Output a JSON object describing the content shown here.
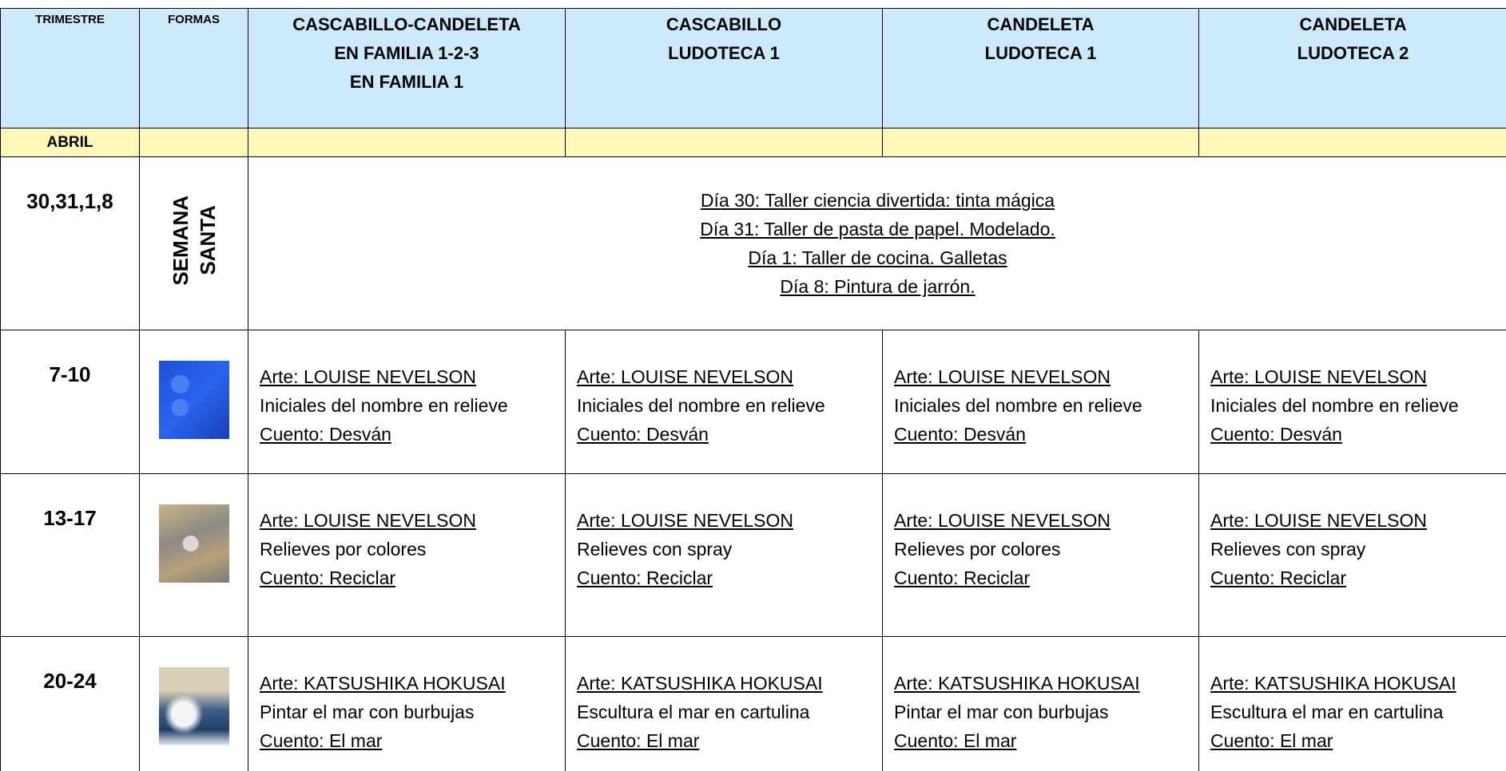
{
  "header": {
    "columns": [
      [
        "TRIMESTRE"
      ],
      [
        "FORMAS"
      ],
      [
        "CASCABILLO-CANDELETA",
        "EN FAMILIA 1-2-3",
        "EN FAMILIA 1"
      ],
      [
        "CASCABILLO",
        "LUDOTECA 1"
      ],
      [
        "CANDELETA",
        "LUDOTECA 1"
      ],
      [
        "CANDELETA",
        "LUDOTECA 2"
      ]
    ]
  },
  "month": "ABRIL",
  "holiday": {
    "dates": "30,31,1,8",
    "forma": [
      "SEMANA",
      "SANTA"
    ],
    "lines": [
      "Día 30: Taller ciencia divertida: tinta mágica",
      "Día 31: Taller de pasta de papel. Modelado.",
      "Día 1: Taller de cocina. Galletas",
      "Día 8: Pintura de jarrón."
    ]
  },
  "weeks": [
    {
      "dates": "7-10",
      "cells": [
        [
          "Arte: LOUISE NEVELSON",
          "Iniciales del nombre en relieve",
          "Cuento: Desván"
        ],
        [
          "Arte: LOUISE NEVELSON",
          "Iniciales del nombre en relieve",
          "Cuento: Desván"
        ],
        [
          "Arte: LOUISE NEVELSON",
          "Iniciales del nombre en relieve",
          "Cuento: Desván"
        ],
        [
          "Arte: LOUISE NEVELSON",
          "Iniciales del nombre en relieve",
          "Cuento: Desván"
        ]
      ]
    },
    {
      "dates": "13-17",
      "cells": [
        [
          "Arte: LOUISE NEVELSON",
          "Relieves por colores",
          "Cuento: Reciclar"
        ],
        [
          "Arte: LOUISE NEVELSON",
          "Relieves con spray",
          "Cuento: Reciclar"
        ],
        [
          "Arte: LOUISE NEVELSON",
          "Relieves por colores",
          "Cuento: Reciclar"
        ],
        [
          "Arte: LOUISE NEVELSON",
          "Relieves con spray",
          "Cuento: Reciclar"
        ]
      ]
    },
    {
      "dates": "20-24",
      "cells": [
        [
          "Arte: KATSUSHIKA HOKUSAI",
          "Pintar el mar con burbujas",
          "Cuento: El mar"
        ],
        [
          "Arte: KATSUSHIKA HOKUSAI",
          "Escultura el mar en cartulina",
          "Cuento: El mar"
        ],
        [
          "Arte: KATSUSHIKA HOKUSAI",
          "Pintar el mar con burbujas",
          "Cuento: El mar"
        ],
        [
          "Arte: KATSUSHIKA HOKUSAI",
          "Escultura el mar en cartulina",
          "Cuento: El mar"
        ]
      ]
    }
  ]
}
